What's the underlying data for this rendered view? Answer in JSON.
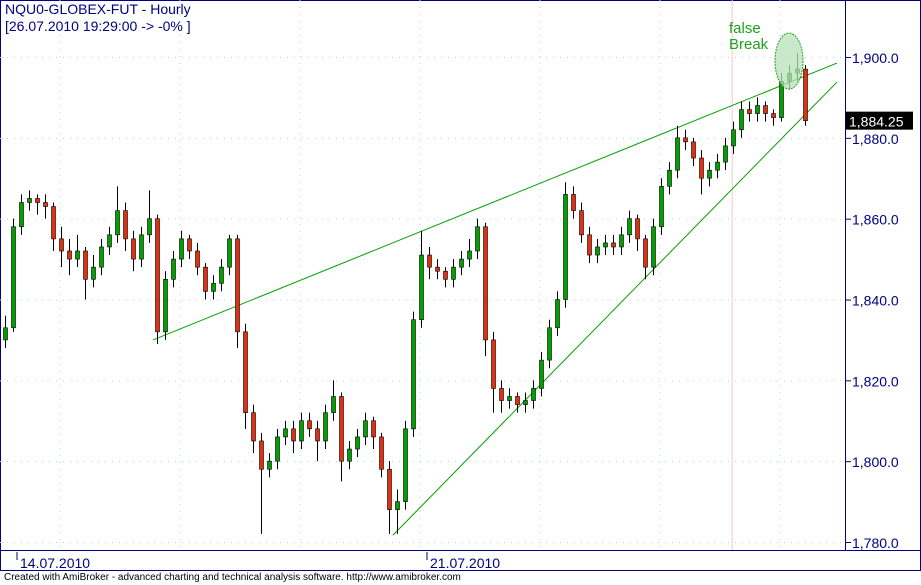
{
  "header": {
    "symbol_line": "NQU0-GLOBEX-FUT - Hourly",
    "status_line": "[26.07.2010 19:29:00 -> -0% ]"
  },
  "footer": "Created with AmiBroker - advanced charting and technical analysis software. http://www.amibroker.com",
  "chart_data": {
    "type": "candlestick",
    "title": "NQU0-GLOBEX-FUT - Hourly",
    "ylim": [
      1778,
      1910
    ],
    "y_ticks": [
      1780,
      1800,
      1820,
      1840,
      1860,
      1880,
      1900
    ],
    "y_tick_labels": [
      "1,780.0",
      "1,800.0",
      "1,820.0",
      "1,840.0",
      "1,860.0",
      "1,880.0",
      "1,900.0"
    ],
    "grid": "dotted",
    "date_markers": [
      {
        "label": "14.07.2010",
        "bar": 1.5
      },
      {
        "label": "21.07.2010",
        "bar": 52.75
      }
    ],
    "last_price": {
      "label": "1,884.25",
      "value": 1884.25
    },
    "colors": {
      "up": "#00a000",
      "down": "#e03010",
      "trendline": "#00a000",
      "axis": "#000080",
      "annotation": "#20a020",
      "ellipse": "#b8e0b8"
    },
    "ohlc": [
      [
        1830,
        1836,
        1828,
        1833
      ],
      [
        1833,
        1860,
        1832,
        1858
      ],
      [
        1858,
        1866,
        1856,
        1864
      ],
      [
        1864,
        1867,
        1862,
        1865
      ],
      [
        1865,
        1866,
        1861,
        1864
      ],
      [
        1864,
        1866,
        1860,
        1863
      ],
      [
        1863,
        1864,
        1852,
        1855
      ],
      [
        1855,
        1858,
        1848,
        1852
      ],
      [
        1852,
        1855,
        1846,
        1850
      ],
      [
        1850,
        1856,
        1848,
        1852
      ],
      [
        1852,
        1853,
        1840,
        1845
      ],
      [
        1845,
        1851,
        1843,
        1848
      ],
      [
        1848,
        1855,
        1846,
        1853
      ],
      [
        1853,
        1858,
        1851,
        1856
      ],
      [
        1856,
        1868,
        1854,
        1862
      ],
      [
        1862,
        1864,
        1852,
        1855
      ],
      [
        1855,
        1857,
        1847,
        1850
      ],
      [
        1850,
        1858,
        1848,
        1856
      ],
      [
        1856,
        1867,
        1854,
        1860
      ],
      [
        1860,
        1861,
        1829,
        1832
      ],
      [
        1832,
        1847,
        1830,
        1845
      ],
      [
        1845,
        1852,
        1843,
        1850
      ],
      [
        1850,
        1857,
        1848,
        1855
      ],
      [
        1855,
        1856,
        1850,
        1852
      ],
      [
        1852,
        1854,
        1846,
        1848
      ],
      [
        1848,
        1849,
        1840,
        1842
      ],
      [
        1842,
        1846,
        1840,
        1844
      ],
      [
        1844,
        1850,
        1842,
        1848
      ],
      [
        1848,
        1856,
        1846,
        1855
      ],
      [
        1855,
        1856,
        1828,
        1832
      ],
      [
        1832,
        1834,
        1808,
        1812
      ],
      [
        1812,
        1814,
        1802,
        1805
      ],
      [
        1805,
        1807,
        1782,
        1798
      ],
      [
        1798,
        1802,
        1796,
        1800
      ],
      [
        1800,
        1808,
        1798,
        1806
      ],
      [
        1806,
        1810,
        1804,
        1808
      ],
      [
        1808,
        1810,
        1802,
        1805
      ],
      [
        1805,
        1812,
        1803,
        1810
      ],
      [
        1810,
        1812,
        1806,
        1808
      ],
      [
        1808,
        1810,
        1800,
        1805
      ],
      [
        1805,
        1814,
        1803,
        1812
      ],
      [
        1812,
        1820,
        1810,
        1816
      ],
      [
        1816,
        1817,
        1795,
        1800
      ],
      [
        1800,
        1805,
        1798,
        1803
      ],
      [
        1803,
        1808,
        1801,
        1806
      ],
      [
        1806,
        1812,
        1804,
        1810
      ],
      [
        1810,
        1811,
        1803,
        1806
      ],
      [
        1806,
        1807,
        1796,
        1798
      ],
      [
        1798,
        1800,
        1782,
        1788
      ],
      [
        1788,
        1793,
        1782,
        1790
      ],
      [
        1790,
        1810,
        1788,
        1808
      ],
      [
        1808,
        1837,
        1806,
        1835
      ],
      [
        1835,
        1857,
        1833,
        1851
      ],
      [
        1851,
        1853,
        1845,
        1848
      ],
      [
        1848,
        1850,
        1845,
        1847
      ],
      [
        1847,
        1848,
        1843,
        1845
      ],
      [
        1845,
        1850,
        1843,
        1848
      ],
      [
        1848,
        1852,
        1846,
        1850
      ],
      [
        1850,
        1855,
        1848,
        1852
      ],
      [
        1852,
        1860,
        1850,
        1858
      ],
      [
        1858,
        1859,
        1826,
        1830
      ],
      [
        1830,
        1832,
        1812,
        1818
      ],
      [
        1818,
        1820,
        1812,
        1815
      ],
      [
        1815,
        1818,
        1813,
        1816
      ],
      [
        1816,
        1817,
        1812,
        1814
      ],
      [
        1814,
        1817,
        1812,
        1815
      ],
      [
        1815,
        1820,
        1813,
        1818
      ],
      [
        1818,
        1827,
        1816,
        1825
      ],
      [
        1825,
        1835,
        1823,
        1833
      ],
      [
        1833,
        1842,
        1831,
        1840
      ],
      [
        1840,
        1869,
        1838,
        1866
      ],
      [
        1866,
        1868,
        1860,
        1862
      ],
      [
        1862,
        1864,
        1854,
        1856
      ],
      [
        1856,
        1858,
        1849,
        1851
      ],
      [
        1851,
        1855,
        1849,
        1853
      ],
      [
        1853,
        1856,
        1851,
        1854
      ],
      [
        1854,
        1856,
        1851,
        1853
      ],
      [
        1853,
        1858,
        1851,
        1856
      ],
      [
        1856,
        1862,
        1854,
        1860
      ],
      [
        1860,
        1861,
        1852,
        1855
      ],
      [
        1855,
        1856,
        1845,
        1848
      ],
      [
        1848,
        1860,
        1846,
        1858
      ],
      [
        1858,
        1870,
        1856,
        1868
      ],
      [
        1868,
        1874,
        1866,
        1872
      ],
      [
        1872,
        1883,
        1870,
        1880
      ],
      [
        1880,
        1882,
        1877,
        1879
      ],
      [
        1879,
        1880,
        1873,
        1875
      ],
      [
        1875,
        1877,
        1866,
        1870
      ],
      [
        1870,
        1874,
        1868,
        1872
      ],
      [
        1872,
        1876,
        1870,
        1874
      ],
      [
        1874,
        1880,
        1872,
        1878
      ],
      [
        1878,
        1884,
        1876,
        1882
      ],
      [
        1882,
        1889,
        1880,
        1887
      ],
      [
        1887,
        1889,
        1884,
        1886
      ],
      [
        1886,
        1890,
        1884,
        1888
      ],
      [
        1888,
        1889,
        1884,
        1886
      ],
      [
        1886,
        1887,
        1883,
        1885
      ],
      [
        1885,
        1896,
        1884,
        1894
      ],
      [
        1894,
        1898,
        1892,
        1896
      ],
      [
        1896,
        1901,
        1894,
        1897
      ],
      [
        1897,
        1898,
        1883,
        1884.25
      ]
    ],
    "trendlines": [
      {
        "from": {
          "bar": 18.5,
          "price": 1830
        },
        "to": {
          "bar": 104,
          "price": 1898.5
        }
      },
      {
        "from": {
          "bar": 48.5,
          "price": 1781.7
        },
        "to": {
          "bar": 104,
          "price": 1893.8
        }
      }
    ],
    "annotations": [
      {
        "text_lines": [
          "false",
          "Break"
        ],
        "bar": 98,
        "price": 1898.5,
        "shape": "ellipse"
      }
    ],
    "separator_bar": 90.9
  }
}
